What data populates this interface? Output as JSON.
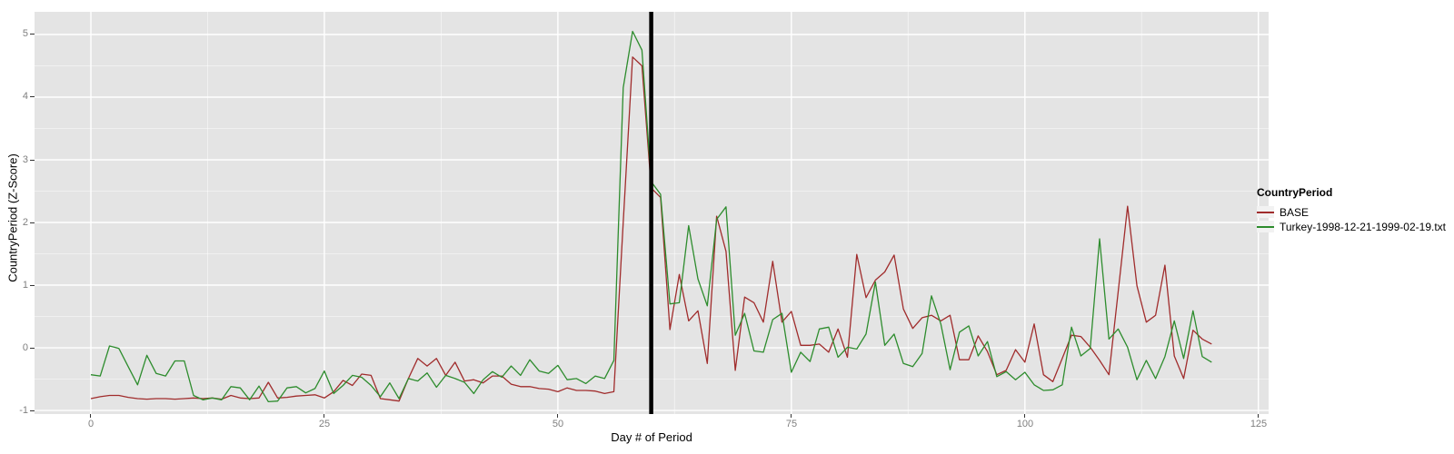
{
  "chart_data": {
    "type": "line",
    "title": "",
    "xlabel": "Day # of Period",
    "ylabel": "CountryPeriod (Z-Score)",
    "legend_title": "CountryPeriod",
    "legend_position": "right",
    "grid": true,
    "x_start": 0,
    "x_step": 1,
    "x_ticks": [
      0,
      25,
      50,
      75,
      100,
      125
    ],
    "x_minor_ticks": [
      12.5,
      37.5,
      62.5,
      87.5,
      112.5
    ],
    "y_ticks": [
      -1,
      0,
      1,
      2,
      3,
      4,
      5
    ],
    "y_minor_ticks": [
      -0.5,
      0.5,
      1.5,
      2.5,
      3.5,
      4.5
    ],
    "xlim": [
      -6.03,
      126.1
    ],
    "ylim": [
      -1.057,
      5.362
    ],
    "event_vline_x": 60,
    "series": [
      {
        "name": "BASE",
        "color": "#A02C2C",
        "values": [
          -0.81,
          -0.78,
          -0.76,
          -0.76,
          -0.79,
          -0.81,
          -0.82,
          -0.81,
          -0.81,
          -0.82,
          -0.81,
          -0.8,
          -0.81,
          -0.8,
          -0.82,
          -0.76,
          -0.8,
          -0.81,
          -0.8,
          -0.55,
          -0.8,
          -0.79,
          -0.77,
          -0.76,
          -0.75,
          -0.8,
          -0.7,
          -0.52,
          -0.6,
          -0.42,
          -0.44,
          -0.81,
          -0.83,
          -0.85,
          -0.49,
          -0.17,
          -0.29,
          -0.17,
          -0.44,
          -0.23,
          -0.53,
          -0.51,
          -0.56,
          -0.45,
          -0.45,
          -0.58,
          -0.62,
          -0.62,
          -0.65,
          -0.66,
          -0.7,
          -0.64,
          -0.68,
          -0.68,
          -0.69,
          -0.73,
          -0.7,
          2.0,
          4.64,
          4.5,
          2.55,
          2.4,
          0.29,
          1.17,
          0.43,
          0.59,
          -0.25,
          2.1,
          1.54,
          -0.36,
          0.81,
          0.72,
          0.41,
          1.38,
          0.41,
          0.58,
          0.04,
          0.04,
          0.06,
          -0.07,
          0.3,
          -0.15,
          1.49,
          0.8,
          1.08,
          1.21,
          1.48,
          0.62,
          0.31,
          0.48,
          0.52,
          0.43,
          0.52,
          -0.19,
          -0.19,
          0.19,
          -0.06,
          -0.43,
          -0.36,
          -0.03,
          -0.23,
          0.38,
          -0.43,
          -0.54,
          -0.17,
          0.2,
          0.18,
          0.01,
          -0.2,
          -0.43,
          0.9,
          2.26,
          0.99,
          0.41,
          0.52,
          1.32,
          -0.13,
          -0.49,
          0.28,
          0.14,
          0.06
        ]
      },
      {
        "name": "Turkey-1998-12-21-1999-02-19.txt",
        "color": "#2D8C2D",
        "values": [
          -0.43,
          -0.45,
          0.03,
          -0.01,
          -0.3,
          -0.59,
          -0.12,
          -0.41,
          -0.45,
          -0.21,
          -0.21,
          -0.76,
          -0.83,
          -0.8,
          -0.83,
          -0.62,
          -0.64,
          -0.83,
          -0.61,
          -0.86,
          -0.85,
          -0.64,
          -0.62,
          -0.72,
          -0.65,
          -0.37,
          -0.73,
          -0.6,
          -0.44,
          -0.47,
          -0.6,
          -0.78,
          -0.56,
          -0.81,
          -0.49,
          -0.53,
          -0.4,
          -0.63,
          -0.44,
          -0.49,
          -0.55,
          -0.73,
          -0.51,
          -0.38,
          -0.47,
          -0.29,
          -0.44,
          -0.19,
          -0.37,
          -0.41,
          -0.28,
          -0.51,
          -0.49,
          -0.57,
          -0.45,
          -0.49,
          -0.2,
          4.15,
          5.05,
          4.75,
          2.65,
          2.45,
          0.7,
          0.72,
          1.95,
          1.1,
          0.67,
          2.05,
          2.25,
          0.2,
          0.55,
          -0.05,
          -0.07,
          0.45,
          0.55,
          -0.39,
          -0.07,
          -0.22,
          0.3,
          0.33,
          -0.15,
          0.01,
          -0.02,
          0.22,
          1.05,
          0.04,
          0.22,
          -0.25,
          -0.3,
          -0.09,
          0.83,
          0.38,
          -0.35,
          0.25,
          0.35,
          -0.13,
          0.1,
          -0.46,
          -0.38,
          -0.51,
          -0.39,
          -0.59,
          -0.68,
          -0.67,
          -0.59,
          0.33,
          -0.13,
          -0.01,
          1.74,
          0.14,
          0.3,
          0.01,
          -0.51,
          -0.2,
          -0.49,
          -0.14,
          0.43,
          -0.17,
          0.59,
          -0.14,
          -0.23
        ]
      }
    ]
  },
  "style": {
    "panel_bg": "#E4E4E4",
    "grid_major_color": "#FFFFFF",
    "grid_minor_color": "#FFFFFF",
    "tick_label_color": "#7F7F7F",
    "tick_mark_color": "#333333",
    "axis_title_color": "#000000",
    "vline_color": "#000000",
    "legend_key_bg": "#F2F2F2"
  }
}
